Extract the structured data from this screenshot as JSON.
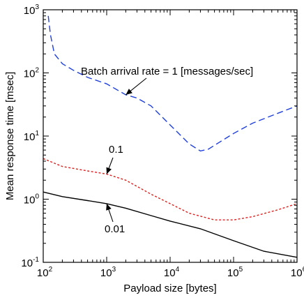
{
  "chart_data": {
    "type": "line",
    "title": "",
    "xlabel": "Payload size [bytes]",
    "ylabel": "Mean response time [msec]",
    "x_scale": "log",
    "y_scale": "log",
    "xlim": [
      100,
      1000000
    ],
    "ylim": [
      0.1,
      1000
    ],
    "x_ticks": [
      {
        "base": "10",
        "exp": "2"
      },
      {
        "base": "10",
        "exp": "3"
      },
      {
        "base": "10",
        "exp": "4"
      },
      {
        "base": "10",
        "exp": "5"
      },
      {
        "base": "10",
        "exp": "6"
      }
    ],
    "y_ticks": [
      {
        "base": "10",
        "exp": "-1"
      },
      {
        "base": "10",
        "exp": "0"
      },
      {
        "base": "10",
        "exp": "1"
      },
      {
        "base": "10",
        "exp": "2"
      },
      {
        "base": "10",
        "exp": "3"
      }
    ],
    "grid": false,
    "series": [
      {
        "color": "#1f3fdc",
        "dash": "dashed",
        "x": [
          120,
          130,
          150,
          200,
          300,
          500,
          1000,
          2000,
          3000,
          5000,
          10000,
          20000,
          30000,
          40000,
          60000,
          100000,
          200000,
          500000,
          1000000
        ],
        "y": [
          800,
          400,
          200,
          140,
          110,
          85,
          67,
          45,
          40,
          30,
          15,
          7.5,
          5.8,
          6.2,
          8.0,
          11,
          16,
          23,
          30
        ]
      },
      {
        "color": "#dc2020",
        "dash": "dotted",
        "x": [
          100,
          200,
          500,
          1000,
          2000,
          5000,
          10000,
          20000,
          50000,
          100000,
          200000,
          500000,
          1000000
        ],
        "y": [
          4.4,
          3.3,
          2.8,
          2.5,
          2.0,
          1.2,
          0.85,
          0.6,
          0.47,
          0.47,
          0.53,
          0.68,
          0.85
        ]
      },
      {
        "color": "#000000",
        "dash": "solid",
        "x": [
          100,
          200,
          500,
          1000,
          2000,
          5000,
          10000,
          30000,
          100000,
          300000,
          1000000
        ],
        "y": [
          1.3,
          1.1,
          0.95,
          0.85,
          0.72,
          0.55,
          0.45,
          0.34,
          0.22,
          0.15,
          0.12
        ]
      }
    ],
    "annotations": [
      {
        "text": "Batch arrival rate = 1 [messages/sec]",
        "x": 2000,
        "y": 45
      },
      {
        "text": "0.1",
        "x": 1000,
        "y": 2.5
      },
      {
        "text": "0.01",
        "x": 1000,
        "y": 0.85
      }
    ]
  }
}
